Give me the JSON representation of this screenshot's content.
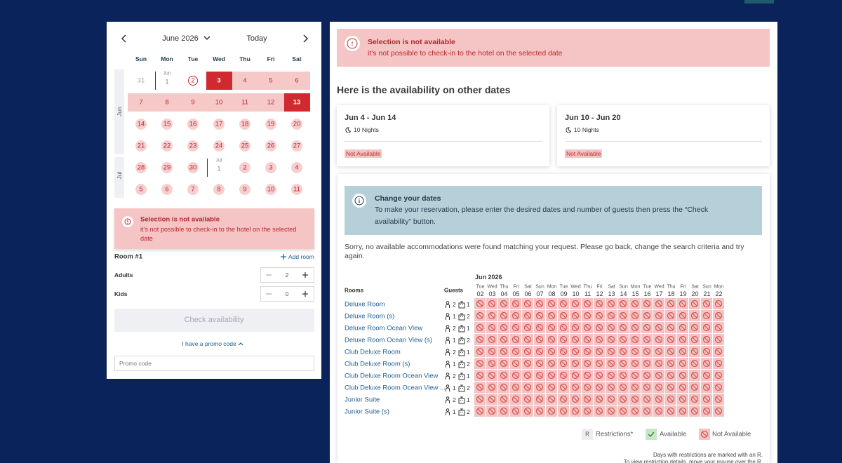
{
  "calendar": {
    "month": "June 2026",
    "today": "Today",
    "weekdays": [
      "Sun",
      "Mon",
      "Tue",
      "Wed",
      "Thu",
      "Fri",
      "Sat"
    ],
    "month_labels": [
      "Jun",
      "Jul"
    ],
    "weeks": [
      [
        31,
        {
          "month": "Jun",
          "day": 1
        },
        2,
        3,
        4,
        5,
        6
      ],
      [
        7,
        8,
        9,
        10,
        11,
        12,
        13
      ],
      [
        14,
        15,
        16,
        17,
        18,
        19,
        20
      ],
      [
        21,
        22,
        23,
        24,
        25,
        26,
        27
      ],
      [
        28,
        29,
        30,
        {
          "month": "Jul",
          "day": 1
        },
        2,
        3,
        4
      ],
      [
        5,
        6,
        7,
        8,
        9,
        10,
        11
      ]
    ]
  },
  "sidebar_alert": {
    "title": "Selection is not available",
    "message": "it's not possible to check-in to the hotel on the selected date"
  },
  "room": {
    "label": "Room #1",
    "add": "Add room",
    "adults_label": "Adults",
    "adults": 2,
    "kids_label": "Kids",
    "kids": 0
  },
  "check_button": "Check availability",
  "promo_toggle": "I have a promo code",
  "promo_placeholder": "Promo code",
  "main_alert": {
    "title": "Selection is not available",
    "message": "it's not possible to check-in to the hotel on the selected date"
  },
  "other_dates": {
    "heading": "Here is the availability on other dates",
    "options": [
      {
        "range": "Jun 4 - Jun 14",
        "nights": "10 Nights",
        "status": "Not Available"
      },
      {
        "range": "Jun 10 - Jun 20",
        "nights": "10 Nights",
        "status": "Not Available"
      }
    ]
  },
  "info": {
    "title": "Change your dates",
    "message": "To make your reservation, please enter the desired dates and number of guests then press the “Check availability” button."
  },
  "no_results": "Sorry, no available accommodations were found matching your request. Please go back, change the search criteria and try again.",
  "grid": {
    "month": "Jun 2026",
    "rooms_label": "Rooms",
    "guests_label": "Guests",
    "days": [
      {
        "weekday": "Tue",
        "day": "02"
      },
      {
        "weekday": "Wed",
        "day": "03"
      },
      {
        "weekday": "Thu",
        "day": "04"
      },
      {
        "weekday": "Fri",
        "day": "05"
      },
      {
        "weekday": "Sat",
        "day": "06"
      },
      {
        "weekday": "Sun",
        "day": "07"
      },
      {
        "weekday": "Mon",
        "day": "08"
      },
      {
        "weekday": "Tue",
        "day": "09"
      },
      {
        "weekday": "Wed",
        "day": "10"
      },
      {
        "weekday": "Thu",
        "day": "11"
      },
      {
        "weekday": "Fri",
        "day": "12"
      },
      {
        "weekday": "Sat",
        "day": "13"
      },
      {
        "weekday": "Sun",
        "day": "14"
      },
      {
        "weekday": "Mon",
        "day": "15"
      },
      {
        "weekday": "Tue",
        "day": "16"
      },
      {
        "weekday": "Wed",
        "day": "17"
      },
      {
        "weekday": "Thu",
        "day": "18"
      },
      {
        "weekday": "Fri",
        "day": "19"
      },
      {
        "weekday": "Sat",
        "day": "20"
      },
      {
        "weekday": "Sun",
        "day": "21"
      },
      {
        "weekday": "Mon",
        "day": "22"
      }
    ],
    "rooms": [
      {
        "name": "Deluxe Room",
        "adults": 2,
        "kids": 1
      },
      {
        "name": "Deluxe Room (s)",
        "adults": 1,
        "kids": 2
      },
      {
        "name": "Deluxe Room Ocean View",
        "adults": 2,
        "kids": 1
      },
      {
        "name": "Deluxe Room Ocean View (s)",
        "adults": 1,
        "kids": 2
      },
      {
        "name": "Club Deluxe Room",
        "adults": 2,
        "kids": 1
      },
      {
        "name": "Club Deluxe Room (s)",
        "adults": 1,
        "kids": 2
      },
      {
        "name": "Club Deluxe Room Ocean View",
        "adults": 2,
        "kids": 1
      },
      {
        "name": "Club Deluxe Room Ocean View ...",
        "adults": 1,
        "kids": 2
      },
      {
        "name": "Junior Suite",
        "adults": 2,
        "kids": 1
      },
      {
        "name": "Junior Suite (s)",
        "adults": 1,
        "kids": 2
      }
    ]
  },
  "legend": {
    "restriction_mark": "R",
    "restrictions": "Restrictions*",
    "available": "Available",
    "not_available": "Not Available"
  },
  "footer": [
    "Days with restrictions are marked with an R.",
    "To view restriction details, move your mouse over the R."
  ]
}
